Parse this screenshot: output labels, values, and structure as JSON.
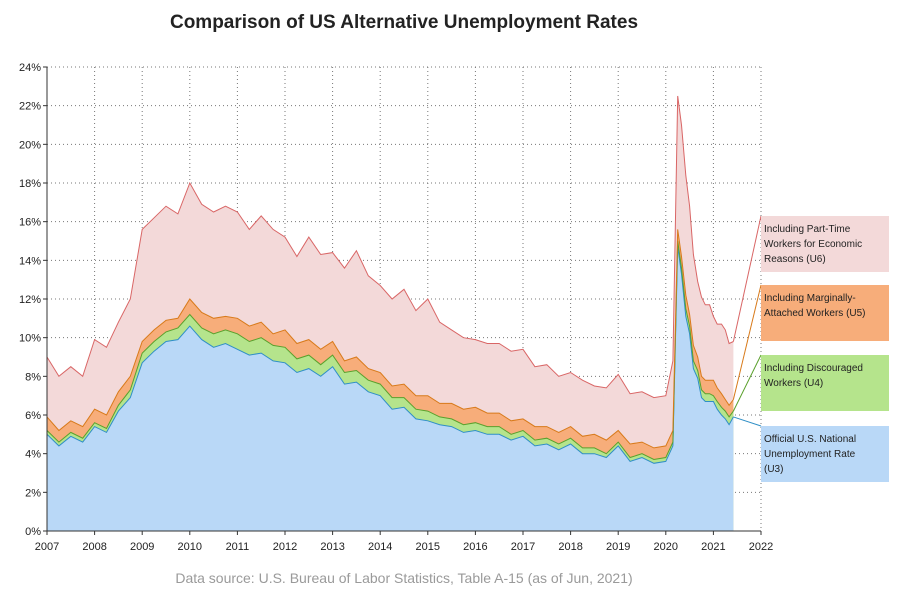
{
  "chart_data": {
    "type": "area",
    "title": "Comparison of US Alternative Unemployment Rates",
    "source": "Data source: U.S. Bureau of Labor Statistics, Table A-15 (as of Jun, 2021)",
    "x_ticks": [
      "2007",
      "2008",
      "2009",
      "2010",
      "2011",
      "2012",
      "2013",
      "2014",
      "2015",
      "2016",
      "2017",
      "2018",
      "2019",
      "2020",
      "2021",
      "2022"
    ],
    "y_ticks": [
      "0%",
      "2%",
      "4%",
      "6%",
      "8%",
      "10%",
      "12%",
      "14%",
      "16%",
      "18%",
      "20%",
      "22%",
      "24%"
    ],
    "xlim": [
      2007,
      2022
    ],
    "ylim": [
      0,
      24
    ],
    "grid": true,
    "legend_placement": "right",
    "x": [
      2007.0,
      2007.25,
      2007.5,
      2007.75,
      2008.0,
      2008.25,
      2008.5,
      2008.75,
      2009.0,
      2009.25,
      2009.5,
      2009.75,
      2010.0,
      2010.25,
      2010.5,
      2010.75,
      2011.0,
      2011.25,
      2011.5,
      2011.75,
      2012.0,
      2012.25,
      2012.5,
      2012.75,
      2013.0,
      2013.25,
      2013.5,
      2013.75,
      2014.0,
      2014.25,
      2014.5,
      2014.75,
      2015.0,
      2015.25,
      2015.5,
      2015.75,
      2016.0,
      2016.25,
      2016.5,
      2016.75,
      2017.0,
      2017.25,
      2017.5,
      2017.75,
      2018.0,
      2018.25,
      2018.5,
      2018.75,
      2019.0,
      2019.25,
      2019.5,
      2019.75,
      2020.0,
      2020.15,
      2020.25,
      2020.33,
      2020.42,
      2020.5,
      2020.58,
      2020.67,
      2020.75,
      2020.83,
      2020.92,
      2021.0,
      2021.08,
      2021.17,
      2021.25,
      2021.33,
      2021.42
    ],
    "series": [
      {
        "name": "Official U.S. National Unemployment Rate (U3)",
        "color": "#b9d8f7",
        "line": "#2f8fc6",
        "values": [
          5.0,
          4.4,
          4.9,
          4.6,
          5.4,
          5.1,
          6.2,
          6.9,
          8.7,
          9.3,
          9.8,
          9.9,
          10.6,
          9.9,
          9.5,
          9.7,
          9.4,
          9.1,
          9.2,
          8.8,
          8.7,
          8.2,
          8.4,
          8.0,
          8.5,
          7.6,
          7.7,
          7.2,
          7.0,
          6.3,
          6.4,
          5.8,
          5.7,
          5.5,
          5.4,
          5.1,
          5.2,
          5.0,
          5.0,
          4.7,
          4.9,
          4.4,
          4.5,
          4.2,
          4.5,
          4.0,
          4.0,
          3.8,
          4.4,
          3.6,
          3.8,
          3.5,
          3.6,
          4.4,
          14.7,
          13.3,
          11.1,
          10.2,
          8.4,
          7.9,
          6.9,
          6.7,
          6.7,
          6.7,
          6.3,
          6.0,
          5.8,
          5.5,
          5.9
        ]
      },
      {
        "name": "Including Discouraged Workers (U4)",
        "color": "#b5e48c",
        "line": "#5aa02c",
        "values": [
          5.2,
          4.6,
          5.1,
          4.8,
          5.6,
          5.3,
          6.5,
          7.3,
          9.2,
          9.8,
          10.3,
          10.5,
          11.2,
          10.5,
          10.2,
          10.4,
          10.2,
          9.8,
          10.0,
          9.6,
          9.5,
          8.9,
          9.1,
          8.6,
          9.1,
          8.2,
          8.3,
          7.8,
          7.6,
          6.9,
          6.9,
          6.3,
          6.2,
          5.9,
          5.8,
          5.5,
          5.6,
          5.4,
          5.4,
          5.0,
          5.2,
          4.7,
          4.8,
          4.5,
          4.8,
          4.3,
          4.3,
          4.0,
          4.6,
          3.8,
          4.0,
          3.7,
          3.8,
          4.6,
          15.0,
          13.6,
          11.5,
          10.6,
          8.8,
          8.3,
          7.3,
          7.1,
          7.1,
          7.0,
          6.7,
          6.4,
          6.2,
          5.9,
          6.2
        ]
      },
      {
        "name": "Including Marginally-Attached Workers (U5)",
        "color": "#f7ad7a",
        "line": "#d87a1a",
        "values": [
          5.9,
          5.2,
          5.7,
          5.4,
          6.3,
          6.0,
          7.2,
          8.0,
          9.8,
          10.4,
          10.9,
          11.0,
          12.0,
          11.3,
          11.0,
          11.1,
          11.0,
          10.6,
          10.8,
          10.2,
          10.4,
          9.7,
          9.9,
          9.4,
          9.8,
          8.8,
          9.0,
          8.4,
          8.2,
          7.5,
          7.6,
          7.0,
          7.0,
          6.6,
          6.6,
          6.3,
          6.4,
          6.1,
          6.1,
          5.7,
          5.8,
          5.4,
          5.4,
          5.1,
          5.4,
          4.9,
          5.0,
          4.7,
          5.2,
          4.5,
          4.6,
          4.3,
          4.4,
          5.2,
          15.6,
          14.2,
          12.2,
          11.2,
          9.6,
          9.0,
          8.0,
          7.8,
          7.8,
          7.8,
          7.4,
          7.1,
          6.8,
          6.5,
          6.8
        ]
      },
      {
        "name": "Including Part-Time Workers for Economic Reasons (U6)",
        "color": "#f3d9d9",
        "line": "#d96666",
        "values": [
          9.0,
          8.0,
          8.5,
          8.0,
          9.9,
          9.5,
          10.8,
          12.0,
          15.6,
          16.2,
          16.8,
          16.4,
          18.0,
          16.9,
          16.5,
          16.8,
          16.5,
          15.6,
          16.3,
          15.6,
          15.2,
          14.2,
          15.2,
          14.3,
          14.4,
          13.6,
          14.5,
          13.2,
          12.7,
          12.0,
          12.5,
          11.4,
          12.0,
          10.8,
          10.4,
          10.0,
          9.9,
          9.7,
          9.7,
          9.3,
          9.4,
          8.5,
          8.6,
          8.0,
          8.2,
          7.8,
          7.5,
          7.4,
          8.1,
          7.1,
          7.2,
          6.9,
          7.0,
          8.8,
          22.5,
          21.0,
          18.4,
          16.8,
          14.3,
          12.9,
          12.1,
          11.7,
          11.7,
          11.1,
          10.7,
          10.7,
          10.4,
          9.7,
          9.8
        ]
      }
    ]
  },
  "legend": {
    "u6": [
      "Including Part-Time",
      "Workers for Economic",
      "Reasons (U6)"
    ],
    "u5": [
      "Including Marginally-",
      "Attached Workers (U5)"
    ],
    "u4": [
      "Including Discouraged",
      "Workers (U4)"
    ],
    "u3": [
      "Official U.S. National",
      "Unemployment Rate",
      "(U3)"
    ]
  }
}
